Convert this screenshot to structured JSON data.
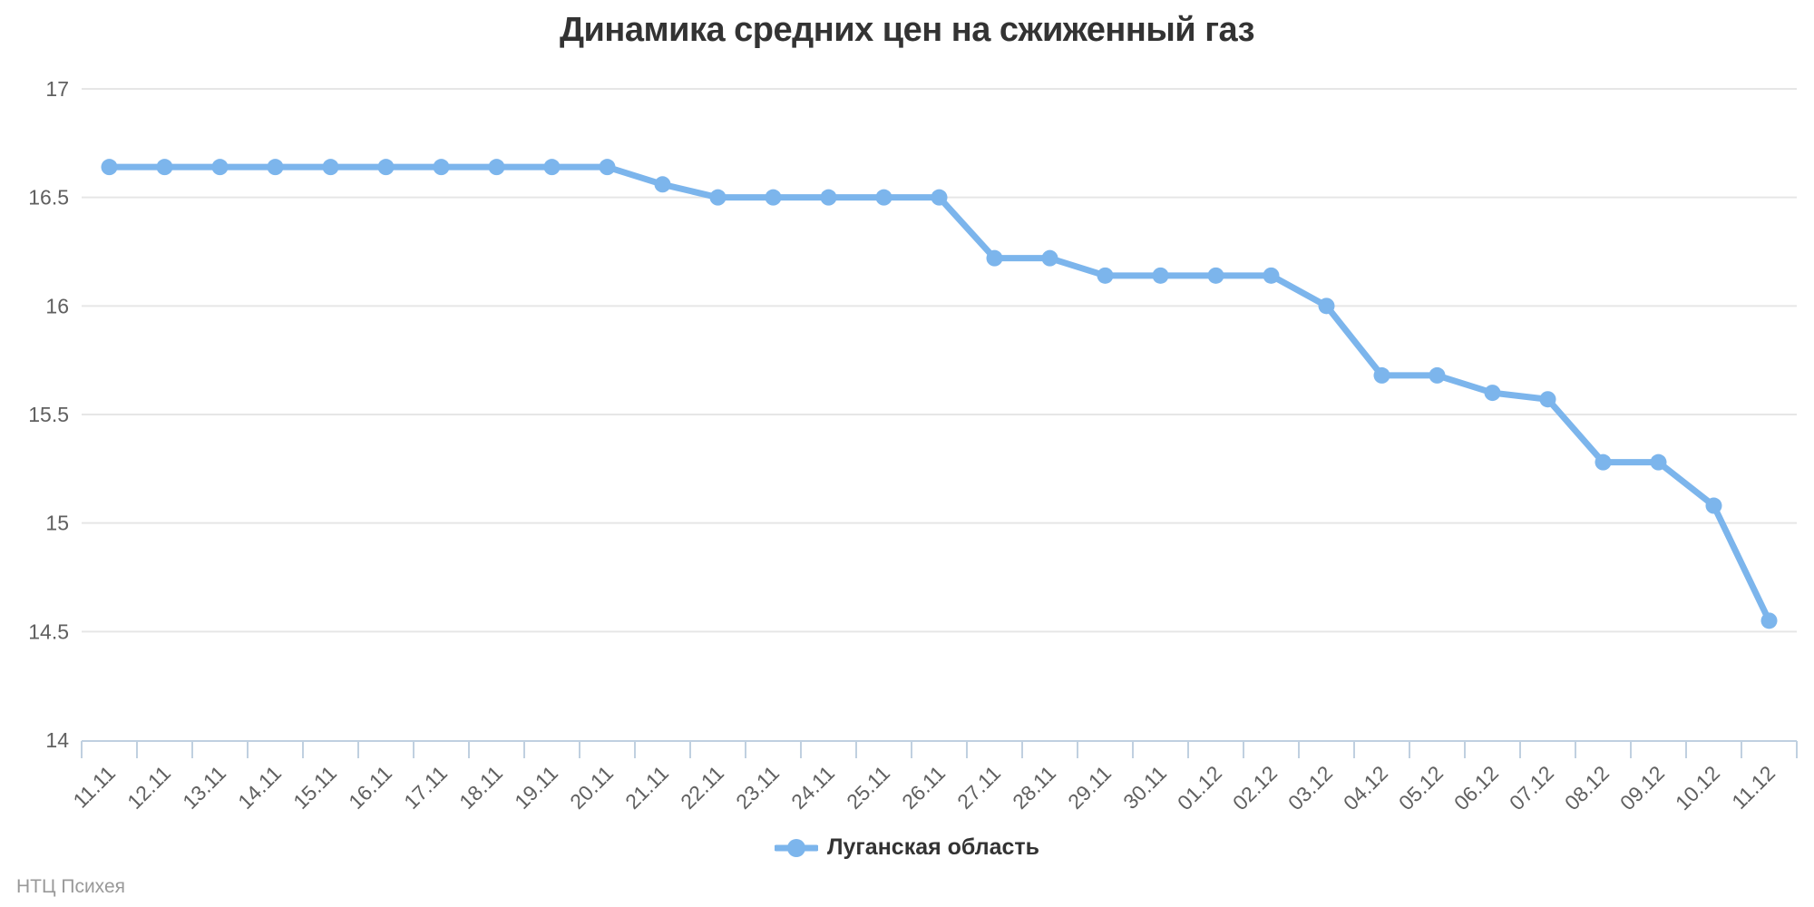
{
  "title": "Динамика средних цен на сжиженный газ",
  "credits": {
    "text": "НТЦ Психея"
  },
  "colors": {
    "series": "#7cb5ec",
    "grid": "#e6e6e6",
    "axis_line": "#c0d0e0",
    "tick": "#c0d0e0",
    "axis_label": "#606060",
    "title": "#333333",
    "legend_text": "#333333",
    "credits_text": "#999999"
  },
  "chart_data": {
    "type": "line",
    "title": "Динамика средних цен на сжиженный газ",
    "xlabel": "",
    "ylabel": "",
    "ylim": [
      14,
      17
    ],
    "yticks": [
      14,
      14.5,
      15,
      15.5,
      16,
      16.5,
      17
    ],
    "grid": "horizontal",
    "x_label_rotation": -45,
    "legend_position": "bottom-center",
    "categories": [
      "11.11",
      "12.11",
      "13.11",
      "14.11",
      "15.11",
      "16.11",
      "17.11",
      "18.11",
      "19.11",
      "20.11",
      "21.11",
      "22.11",
      "23.11",
      "24.11",
      "25.11",
      "26.11",
      "27.11",
      "28.11",
      "29.11",
      "30.11",
      "01.12",
      "02.12",
      "03.12",
      "04.12",
      "05.12",
      "06.12",
      "07.12",
      "08.12",
      "09.12",
      "10.12",
      "11.12"
    ],
    "series": [
      {
        "name": "Луганская область",
        "color": "#7cb5ec",
        "values": [
          16.64,
          16.64,
          16.64,
          16.64,
          16.64,
          16.64,
          16.64,
          16.64,
          16.64,
          16.64,
          16.56,
          16.5,
          16.5,
          16.5,
          16.5,
          16.5,
          16.22,
          16.22,
          16.14,
          16.14,
          16.14,
          16.14,
          16.0,
          15.68,
          15.68,
          15.6,
          15.57,
          15.28,
          15.28,
          15.08,
          14.55
        ]
      }
    ]
  }
}
